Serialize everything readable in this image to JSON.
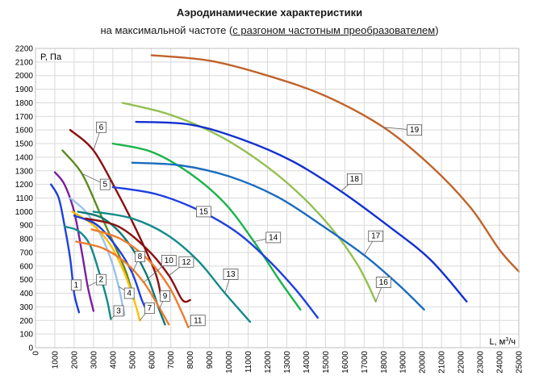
{
  "title": "Аэродинамические характеристики",
  "subtitle_pre": "на максимальной частоте (",
  "subtitle_underlined": "с разгоном частотным преобразователем",
  "subtitle_post": ")",
  "chart_data": {
    "type": "line",
    "ylabel": "P, Па",
    "xlabel_prefix": "L, м",
    "xlabel_sup": "3",
    "xlabel_suffix": "/ч",
    "xlim": [
      0,
      25000
    ],
    "ylim": [
      0,
      2200
    ],
    "x_ticks": [
      "0",
      "1000",
      "2000",
      "3000",
      "4000",
      "5000",
      "6000",
      "7000",
      "8000",
      "9000",
      "10000",
      "11000",
      "12000",
      "13000",
      "14000",
      "15000",
      "16000",
      "17000",
      "18000",
      "19000",
      "20000",
      "21000",
      "22000",
      "23000",
      "24000",
      "25000"
    ],
    "y_ticks": [
      "0",
      "100",
      "200",
      "300",
      "400",
      "500",
      "600",
      "700",
      "800",
      "900",
      "1000",
      "1100",
      "1200",
      "1300",
      "1400",
      "1500",
      "1600",
      "1700",
      "1800",
      "1900",
      "2000",
      "2100",
      "2200"
    ],
    "grid": true,
    "series": [
      {
        "name": "1",
        "color": "#1f3fe0",
        "points": [
          [
            800,
            1200
          ],
          [
            1200,
            1100
          ],
          [
            1500,
            900
          ],
          [
            1800,
            650
          ],
          [
            2000,
            400
          ],
          [
            2250,
            260
          ]
        ],
        "label_at": [
          2100,
          460
        ]
      },
      {
        "name": "2",
        "color": "#7a1fa0",
        "points": [
          [
            1000,
            1290
          ],
          [
            1500,
            1200
          ],
          [
            2000,
            1000
          ],
          [
            2400,
            700
          ],
          [
            2700,
            450
          ],
          [
            3000,
            270
          ]
        ],
        "label_at": [
          3400,
          500
        ]
      },
      {
        "name": "3",
        "color": "#128a8a",
        "points": [
          [
            1500,
            890
          ],
          [
            2200,
            860
          ],
          [
            2800,
            760
          ],
          [
            3300,
            550
          ],
          [
            3700,
            350
          ],
          [
            3900,
            210
          ]
        ],
        "label_at": [
          4300,
          270
        ]
      },
      {
        "name": "4",
        "color": "#99c2ee",
        "points": [
          [
            1800,
            1100
          ],
          [
            2600,
            1000
          ],
          [
            3300,
            850
          ],
          [
            3900,
            650
          ],
          [
            4300,
            450
          ],
          [
            4600,
            240
          ]
        ],
        "label_at": [
          4850,
          400
        ]
      },
      {
        "name": "5",
        "color": "#5d8a20",
        "points": [
          [
            1400,
            1450
          ],
          [
            2400,
            1280
          ],
          [
            3300,
            1000
          ],
          [
            4100,
            750
          ],
          [
            4700,
            550
          ],
          [
            5100,
            350
          ]
        ],
        "label_at": [
          3600,
          1200
        ]
      },
      {
        "name": "6",
        "color": "#8a1010",
        "points": [
          [
            1800,
            1600
          ],
          [
            3000,
            1450
          ],
          [
            4200,
            1150
          ],
          [
            5200,
            870
          ],
          [
            6200,
            550
          ],
          [
            6500,
            370
          ]
        ],
        "label_at": [
          3400,
          1620
        ]
      },
      {
        "name": "7",
        "color": "#ffc000",
        "points": [
          [
            1900,
            1000
          ],
          [
            3000,
            900
          ],
          [
            3900,
            750
          ],
          [
            4600,
            550
          ],
          [
            5100,
            350
          ],
          [
            5400,
            200
          ]
        ],
        "label_at": [
          5900,
          290
        ]
      },
      {
        "name": "8",
        "color": "#1f3fe0",
        "points": [
          [
            2000,
            970
          ],
          [
            3200,
            900
          ],
          [
            4300,
            720
          ],
          [
            5000,
            550
          ],
          [
            5500,
            350
          ],
          [
            5800,
            260
          ]
        ],
        "label_at": [
          5400,
          670
        ]
      },
      {
        "name": "9",
        "color": "#0d7878",
        "points": [
          [
            2200,
            1000
          ],
          [
            3500,
            950
          ],
          [
            4700,
            790
          ],
          [
            5700,
            550
          ],
          [
            6400,
            280
          ],
          [
            6700,
            170
          ]
        ],
        "label_at": [
          6700,
          380
        ]
      },
      {
        "name": "10",
        "color": "#ed7d31",
        "points": [
          [
            2100,
            780
          ],
          [
            3500,
            730
          ],
          [
            4700,
            620
          ],
          [
            5600,
            480
          ],
          [
            6300,
            320
          ],
          [
            6900,
            170
          ]
        ],
        "label_at": [
          6900,
          640
        ]
      },
      {
        "name": "11",
        "color": "#ed7d31",
        "points": [
          [
            2900,
            870
          ],
          [
            4400,
            800
          ],
          [
            5800,
            650
          ],
          [
            6900,
            450
          ],
          [
            7600,
            250
          ],
          [
            7900,
            150
          ]
        ],
        "label_at": [
          8400,
          200
        ]
      },
      {
        "name": "12",
        "color": "#8a1010",
        "points": [
          [
            2600,
            950
          ],
          [
            4300,
            890
          ],
          [
            5800,
            720
          ],
          [
            6900,
            530
          ],
          [
            7600,
            350
          ],
          [
            8000,
            350
          ]
        ],
        "label_at": [
          7800,
          630
        ]
      },
      {
        "name": "13",
        "color": "#128a8a",
        "points": [
          [
            3000,
            1000
          ],
          [
            5000,
            950
          ],
          [
            6800,
            830
          ],
          [
            8400,
            640
          ],
          [
            9800,
            400
          ],
          [
            11100,
            190
          ]
        ],
        "label_at": [
          10100,
          540
        ]
      },
      {
        "name": "14",
        "color": "#1ab34a",
        "points": [
          [
            4000,
            1500
          ],
          [
            6000,
            1440
          ],
          [
            8000,
            1280
          ],
          [
            9800,
            1060
          ],
          [
            11300,
            780
          ],
          [
            12600,
            500
          ],
          [
            13700,
            280
          ]
        ],
        "label_at": [
          12300,
          810
        ]
      },
      {
        "name": "15",
        "color": "#1f3fe0",
        "points": [
          [
            4000,
            1180
          ],
          [
            6200,
            1130
          ],
          [
            8300,
            1020
          ],
          [
            10300,
            860
          ],
          [
            12000,
            650
          ],
          [
            13500,
            420
          ],
          [
            14600,
            220
          ]
        ],
        "label_at": [
          8700,
          1000
        ]
      },
      {
        "name": "16",
        "color": "#92c050",
        "points": [
          [
            4500,
            1800
          ],
          [
            6800,
            1720
          ],
          [
            9200,
            1580
          ],
          [
            11500,
            1380
          ],
          [
            13500,
            1150
          ],
          [
            15300,
            880
          ],
          [
            16700,
            600
          ],
          [
            17600,
            340
          ]
        ],
        "label_at": [
          18000,
          480
        ]
      },
      {
        "name": "17",
        "color": "#1a6cc0",
        "points": [
          [
            5000,
            1360
          ],
          [
            7500,
            1340
          ],
          [
            10000,
            1260
          ],
          [
            12500,
            1110
          ],
          [
            14800,
            900
          ],
          [
            17000,
            680
          ],
          [
            18800,
            460
          ],
          [
            20100,
            280
          ]
        ],
        "label_at": [
          17600,
          820
        ]
      },
      {
        "name": "18",
        "color": "#1230d0",
        "points": [
          [
            5200,
            1660
          ],
          [
            8000,
            1640
          ],
          [
            10700,
            1530
          ],
          [
            13300,
            1370
          ],
          [
            15800,
            1150
          ],
          [
            18200,
            900
          ],
          [
            20400,
            650
          ],
          [
            22300,
            340
          ]
        ],
        "label_at": [
          16500,
          1240
        ]
      },
      {
        "name": "19",
        "color": "#c0632a",
        "points": [
          [
            6000,
            2150
          ],
          [
            9000,
            2110
          ],
          [
            12000,
            2000
          ],
          [
            15000,
            1850
          ],
          [
            18000,
            1620
          ],
          [
            20500,
            1330
          ],
          [
            22500,
            1030
          ],
          [
            24000,
            720
          ],
          [
            25000,
            560
          ]
        ],
        "label_at": [
          19600,
          1600
        ]
      }
    ]
  }
}
